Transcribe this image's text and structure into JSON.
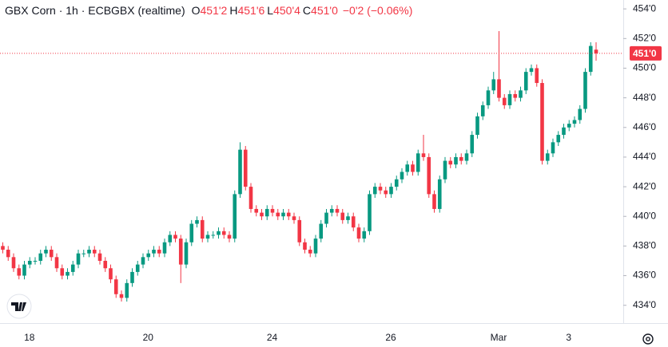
{
  "chart_data": {
    "type": "candlestick",
    "title": "GBX Corn · 1h · ECBGBX (realtime)",
    "legend_fields": [
      {
        "key": "O",
        "label": "451'2"
      },
      {
        "key": "H",
        "label": "451'6"
      },
      {
        "key": "L",
        "label": "450'4"
      },
      {
        "key": "C",
        "label": "451'0"
      }
    ],
    "change_label": "−0'2 (−0.06%)",
    "up_color": "#089981",
    "down_color": "#f23645",
    "ylim": [
      432.8,
      454.6
    ],
    "yticks": [
      {
        "value": 434,
        "label": "434'0"
      },
      {
        "value": 436,
        "label": "436'0"
      },
      {
        "value": 438,
        "label": "438'0"
      },
      {
        "value": 440,
        "label": "440'0"
      },
      {
        "value": 442,
        "label": "442'0"
      },
      {
        "value": 444,
        "label": "444'0"
      },
      {
        "value": 446,
        "label": "446'0"
      },
      {
        "value": 448,
        "label": "448'0"
      },
      {
        "value": 450,
        "label": "450'0"
      },
      {
        "value": 452,
        "label": "452'0"
      },
      {
        "value": 454,
        "label": "454'0"
      }
    ],
    "last_price": {
      "value": 451.0,
      "label": "451'0"
    },
    "categories": [
      null,
      null,
      null,
      null,
      null,
      "18",
      null,
      null,
      null,
      null,
      null,
      null,
      null,
      null,
      null,
      null,
      null,
      null,
      null,
      null,
      null,
      null,
      null,
      null,
      null,
      null,
      null,
      "20",
      null,
      null,
      null,
      null,
      null,
      null,
      null,
      null,
      null,
      null,
      null,
      null,
      null,
      null,
      null,
      null,
      null,
      null,
      null,
      null,
      null,
      null,
      "24",
      null,
      null,
      null,
      null,
      null,
      null,
      null,
      null,
      null,
      null,
      null,
      null,
      null,
      null,
      null,
      null,
      null,
      null,
      null,
      null,
      null,
      "26",
      null,
      null,
      null,
      null,
      null,
      null,
      null,
      null,
      null,
      null,
      null,
      null,
      null,
      null,
      null,
      null,
      null,
      null,
      null,
      "Mar",
      null,
      null,
      null,
      null,
      null,
      null,
      null,
      null,
      null,
      null,
      null,
      null,
      "3",
      null,
      null,
      null,
      null,
      null
    ],
    "open": [
      438.0,
      437.75,
      437.25,
      436.5,
      436.0,
      436.75,
      437.0,
      437.0,
      437.5,
      437.75,
      437.25,
      436.5,
      436.0,
      436.25,
      436.75,
      437.5,
      437.5,
      437.75,
      437.5,
      437.0,
      436.5,
      435.75,
      434.75,
      434.5,
      435.5,
      436.25,
      436.75,
      437.25,
      437.5,
      437.75,
      437.5,
      438.25,
      438.75,
      438.5,
      436.75,
      438.25,
      439.5,
      439.75,
      438.5,
      438.75,
      438.75,
      439.0,
      438.75,
      438.5,
      441.5,
      444.5,
      442.0,
      440.5,
      440.25,
      440.0,
      440.5,
      440.25,
      440.0,
      440.25,
      440.0,
      439.75,
      438.25,
      437.75,
      437.5,
      438.5,
      439.5,
      440.25,
      440.5,
      440.25,
      439.75,
      440.0,
      439.25,
      438.5,
      439.0,
      441.5,
      442.0,
      441.75,
      441.5,
      442.0,
      442.5,
      443.0,
      443.5,
      443.0,
      444.25,
      444.0,
      441.5,
      440.5,
      442.5,
      443.75,
      443.5,
      444.0,
      443.75,
      444.25,
      445.5,
      446.75,
      447.5,
      448.5,
      449.25,
      448.0,
      447.5,
      448.25,
      448.0,
      448.5,
      449.75,
      450.0,
      449.0,
      443.75,
      444.25,
      445.0,
      445.5,
      446.0,
      446.25,
      446.5,
      447.25,
      449.75,
      451.25
    ],
    "high": [
      438.25,
      438.0,
      437.5,
      436.75,
      437.0,
      437.25,
      437.25,
      437.75,
      438.0,
      438.0,
      437.5,
      436.75,
      436.5,
      437.0,
      437.75,
      437.75,
      438.0,
      438.0,
      437.75,
      437.25,
      436.75,
      436.0,
      435.0,
      435.75,
      436.5,
      437.0,
      437.5,
      437.75,
      438.0,
      438.0,
      438.5,
      439.0,
      439.0,
      438.75,
      438.5,
      439.75,
      440.0,
      440.0,
      439.0,
      439.0,
      439.25,
      439.25,
      439.0,
      441.75,
      445.0,
      444.75,
      442.25,
      440.75,
      440.5,
      440.75,
      440.75,
      440.5,
      440.5,
      440.5,
      440.25,
      440.0,
      438.5,
      438.0,
      438.75,
      439.75,
      440.5,
      440.75,
      440.75,
      440.5,
      440.25,
      440.25,
      439.5,
      439.25,
      441.75,
      442.25,
      442.25,
      442.0,
      442.25,
      442.75,
      443.25,
      443.75,
      443.75,
      444.5,
      445.5,
      444.25,
      441.75,
      442.75,
      444.0,
      444.0,
      444.25,
      444.25,
      444.5,
      445.75,
      447.0,
      447.75,
      448.75,
      449.75,
      452.5,
      448.25,
      448.5,
      448.5,
      448.75,
      450.0,
      450.25,
      450.25,
      449.25,
      444.5,
      445.25,
      445.75,
      446.25,
      446.5,
      446.75,
      447.5,
      450.0,
      451.75,
      451.75
    ],
    "low": [
      437.5,
      437.0,
      436.25,
      435.75,
      435.75,
      436.5,
      436.75,
      436.75,
      437.25,
      437.0,
      436.25,
      435.75,
      435.75,
      436.0,
      436.5,
      437.25,
      437.25,
      437.25,
      436.75,
      436.25,
      435.5,
      434.5,
      434.25,
      434.25,
      435.25,
      436.0,
      436.5,
      437.0,
      437.25,
      437.25,
      437.25,
      438.0,
      438.25,
      435.5,
      436.5,
      438.0,
      439.25,
      438.25,
      438.25,
      438.5,
      438.5,
      438.5,
      438.25,
      438.25,
      441.25,
      441.75,
      440.25,
      440.0,
      439.75,
      439.75,
      440.0,
      439.75,
      439.75,
      439.75,
      439.5,
      438.0,
      437.5,
      437.25,
      437.25,
      438.25,
      439.25,
      440.0,
      440.0,
      439.5,
      439.5,
      439.0,
      438.25,
      438.25,
      438.75,
      441.25,
      441.5,
      441.25,
      441.25,
      441.75,
      442.25,
      442.75,
      442.75,
      442.75,
      443.75,
      441.25,
      440.25,
      440.25,
      442.25,
      443.25,
      443.25,
      443.5,
      443.5,
      444.0,
      445.25,
      446.5,
      447.25,
      448.25,
      447.75,
      447.25,
      447.25,
      447.75,
      447.75,
      448.25,
      449.5,
      448.75,
      443.5,
      443.5,
      444.0,
      444.75,
      445.25,
      445.75,
      446.0,
      446.25,
      447.0,
      449.5,
      450.5
    ],
    "close": [
      437.75,
      437.25,
      436.5,
      436.0,
      436.75,
      437.0,
      437.0,
      437.5,
      437.75,
      437.25,
      436.5,
      436.0,
      436.25,
      436.75,
      437.5,
      437.5,
      437.75,
      437.5,
      437.0,
      436.5,
      435.75,
      434.75,
      434.5,
      435.5,
      436.25,
      436.75,
      437.25,
      437.5,
      437.75,
      437.5,
      438.25,
      438.75,
      438.5,
      436.75,
      438.25,
      439.5,
      439.75,
      438.5,
      438.75,
      438.75,
      439.0,
      438.75,
      438.5,
      441.5,
      444.5,
      442.0,
      440.5,
      440.25,
      440.0,
      440.5,
      440.25,
      440.0,
      440.25,
      440.0,
      439.75,
      438.25,
      437.75,
      437.5,
      438.5,
      439.5,
      440.25,
      440.5,
      440.25,
      439.75,
      440.0,
      439.25,
      438.5,
      439.0,
      441.5,
      442.0,
      441.75,
      441.5,
      442.0,
      442.5,
      443.0,
      443.5,
      443.0,
      444.25,
      444.0,
      441.5,
      440.5,
      442.5,
      443.75,
      443.5,
      444.0,
      443.75,
      444.25,
      445.5,
      446.75,
      447.5,
      448.5,
      449.25,
      448.0,
      447.5,
      448.25,
      448.0,
      448.5,
      449.75,
      450.0,
      449.0,
      443.75,
      444.25,
      445.0,
      445.5,
      446.0,
      446.25,
      446.5,
      447.25,
      449.75,
      451.5,
      451.0
    ]
  }
}
